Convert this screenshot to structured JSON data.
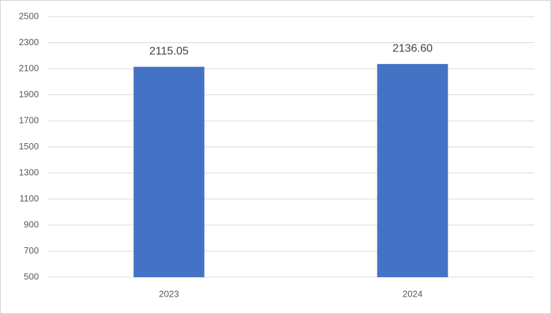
{
  "chart_data": {
    "type": "bar",
    "categories": [
      "2023",
      "2024"
    ],
    "values": [
      2115.05,
      2136.6
    ],
    "value_labels": [
      "2115.05",
      "2136.60"
    ],
    "color": "#4472c4",
    "ylim": [
      500,
      2500
    ],
    "yticks": [
      500,
      700,
      900,
      1100,
      1300,
      1500,
      1700,
      1900,
      2100,
      2300,
      2500
    ],
    "grid": true
  }
}
